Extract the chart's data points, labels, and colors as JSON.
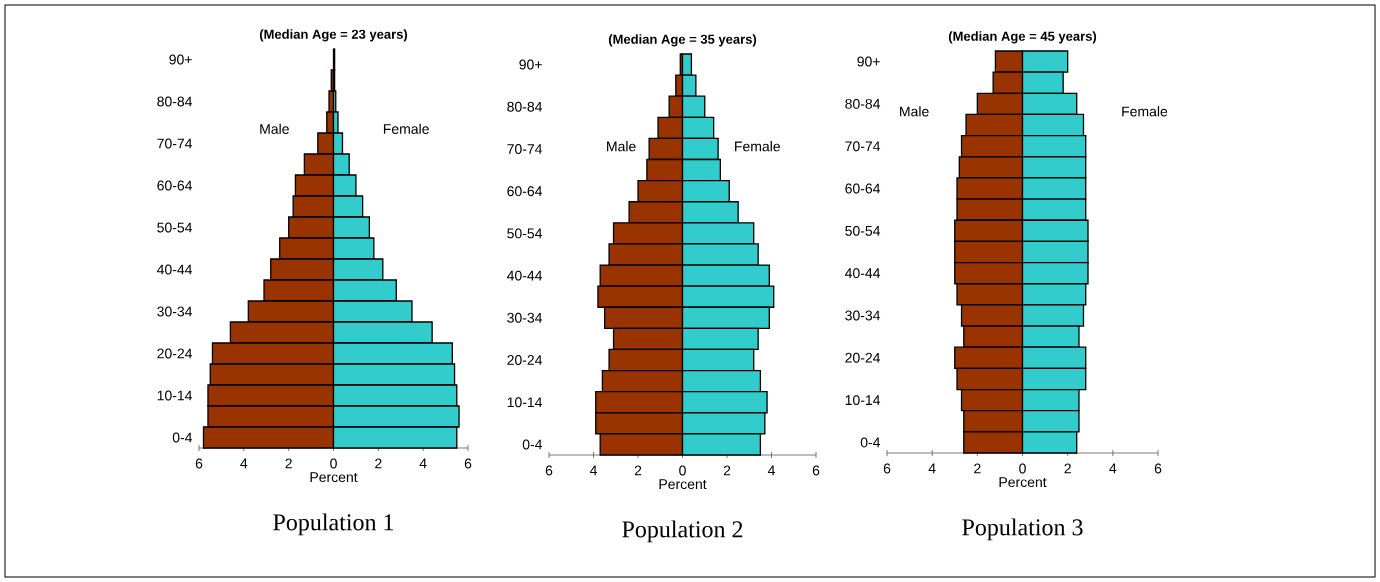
{
  "chart_data": [
    {
      "type": "bar",
      "orientation": "horizontal",
      "stacked": true,
      "title": "(Median Age = 23 years)",
      "xlabel": "Percent",
      "annotations": [
        "Population 1"
      ],
      "categories": [
        "90+",
        null,
        "80-84",
        null,
        "70-74",
        null,
        "60-64",
        null,
        "50-54",
        null,
        "40-44",
        null,
        "30-34",
        null,
        "20-24",
        null,
        "10-14",
        null,
        "0-4"
      ],
      "series": [
        {
          "name": "Male",
          "color": "#993300",
          "values": [
            null,
            -0.1,
            -0.2,
            -0.3,
            -0.7,
            -1.3,
            -1.7,
            -1.8,
            -2.0,
            -2.4,
            -2.8,
            -3.1,
            -3.8,
            -4.6,
            -5.4,
            -5.5,
            -5.6,
            -5.6,
            -5.8
          ]
        },
        {
          "name": "Female",
          "color": "#33cccc",
          "values": [
            0.05,
            0.05,
            0.1,
            0.2,
            0.4,
            0.7,
            1.0,
            1.3,
            1.6,
            1.8,
            2.2,
            2.8,
            3.5,
            4.4,
            5.3,
            5.4,
            5.5,
            5.6,
            5.5
          ]
        }
      ],
      "xlim": [
        -6,
        6
      ],
      "xticks": [
        {
          "value": -6,
          "label": "6"
        },
        {
          "value": -4,
          "label": "4"
        },
        {
          "value": -2,
          "label": "2"
        },
        0,
        2,
        4,
        6
      ]
    },
    {
      "type": "bar",
      "orientation": "horizontal",
      "stacked": true,
      "title": "(Median Age = 35 years)",
      "xlabel": "Percent",
      "annotations": [
        "Population 2"
      ],
      "categories": [
        "90+",
        null,
        "80-84",
        null,
        "70-74",
        null,
        "60-64",
        null,
        "50-54",
        null,
        "40-44",
        null,
        "30-34",
        null,
        "20-24",
        null,
        "10-14",
        null,
        "0-4"
      ],
      "series": [
        {
          "name": "Male",
          "color": "#993300",
          "values": [
            -0.1,
            -0.3,
            -0.6,
            -1.1,
            -1.5,
            -1.6,
            -2.0,
            -2.4,
            -3.1,
            -3.3,
            -3.7,
            -3.8,
            -3.5,
            -3.1,
            -3.3,
            -3.6,
            -3.9,
            -3.9,
            -3.7
          ]
        },
        {
          "name": "Female",
          "color": "#33cccc",
          "values": [
            0.4,
            0.6,
            1.0,
            1.4,
            1.6,
            1.7,
            2.1,
            2.5,
            3.2,
            3.4,
            3.9,
            4.1,
            3.9,
            3.4,
            3.2,
            3.5,
            3.8,
            3.7,
            3.5
          ]
        }
      ],
      "xlim": [
        -6,
        6
      ],
      "xticks": [
        {
          "value": -6,
          "label": "6"
        },
        {
          "value": -4,
          "label": "4"
        },
        {
          "value": -2,
          "label": "2"
        },
        0,
        2,
        4,
        6
      ]
    },
    {
      "type": "bar",
      "orientation": "horizontal",
      "stacked": true,
      "title": "(Median Age = 45 years)",
      "xlabel": "Percent",
      "annotations": [
        "Population 3"
      ],
      "categories": [
        "90+",
        null,
        "80-84",
        null,
        "70-74",
        null,
        "60-64",
        null,
        "50-54",
        null,
        "40-44",
        null,
        "30-34",
        null,
        "20-24",
        null,
        "10-14",
        null,
        "0-4"
      ],
      "series": [
        {
          "name": "Male",
          "color": "#993300",
          "values": [
            -1.2,
            -1.3,
            -2.0,
            -2.5,
            -2.7,
            -2.8,
            -2.9,
            -2.9,
            -3.0,
            -3.0,
            -3.0,
            -2.9,
            -2.7,
            -2.6,
            -3.0,
            -2.9,
            -2.7,
            -2.6,
            -2.6
          ]
        },
        {
          "name": "Female",
          "color": "#33cccc",
          "values": [
            2.0,
            1.8,
            2.4,
            2.7,
            2.8,
            2.8,
            2.8,
            2.8,
            2.9,
            2.9,
            2.9,
            2.8,
            2.7,
            2.5,
            2.8,
            2.8,
            2.5,
            2.5,
            2.4
          ]
        }
      ],
      "xlim": [
        -6,
        6
      ],
      "xticks": [
        {
          "value": -6,
          "label": "6"
        },
        {
          "value": -4,
          "label": "4"
        },
        {
          "value": -2,
          "label": "2"
        },
        0,
        2,
        4,
        6
      ]
    }
  ]
}
